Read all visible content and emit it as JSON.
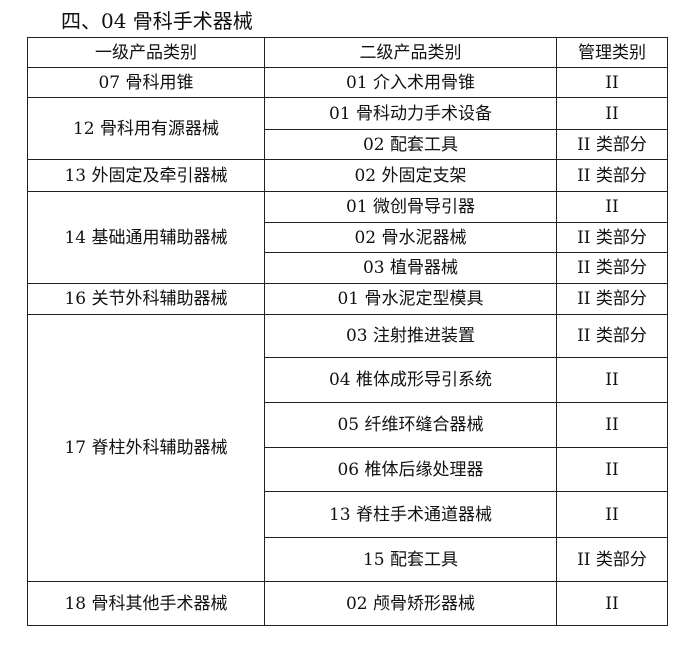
{
  "title": "四、04 骨科手术器械",
  "headers": [
    "一级产品类别",
    "二级产品类别",
    "管理类别"
  ],
  "groups": [
    {
      "primary": "07 骨科用锥",
      "items": [
        {
          "secondary": "01 介入术用骨锥",
          "class": "II"
        }
      ]
    },
    {
      "primary": "12 骨科用有源器械",
      "items": [
        {
          "secondary": "01 骨科动力手术设备",
          "class": "II"
        },
        {
          "secondary": "02 配套工具",
          "class": "II 类部分"
        }
      ]
    },
    {
      "primary": "13 外固定及牵引器械",
      "items": [
        {
          "secondary": "02 外固定支架",
          "class": "II 类部分"
        }
      ]
    },
    {
      "primary": "14 基础通用辅助器械",
      "items": [
        {
          "secondary": "01 微创骨导引器",
          "class": "II"
        },
        {
          "secondary": "02 骨水泥器械",
          "class": "II 类部分"
        },
        {
          "secondary": "03 植骨器械",
          "class": "II 类部分"
        }
      ]
    },
    {
      "primary": "16 关节外科辅助器械",
      "items": [
        {
          "secondary": "01 骨水泥定型模具",
          "class": "II 类部分"
        }
      ]
    },
    {
      "primary": "17 脊柱外科辅助器械",
      "items": [
        {
          "secondary": "03 注射推进装置",
          "class": "II 类部分"
        },
        {
          "secondary": "04 椎体成形导引系统",
          "class": "II"
        },
        {
          "secondary": "05 纤维环缝合器械",
          "class": "II"
        },
        {
          "secondary": "06 椎体后缘处理器",
          "class": "II"
        },
        {
          "secondary": "13 脊柱手术通道器械",
          "class": "II"
        },
        {
          "secondary": "15 配套工具",
          "class": "II 类部分"
        }
      ]
    },
    {
      "primary": "18 骨科其他手术器械",
      "items": [
        {
          "secondary": "02 颅骨矫形器械",
          "class": "II"
        }
      ]
    }
  ]
}
